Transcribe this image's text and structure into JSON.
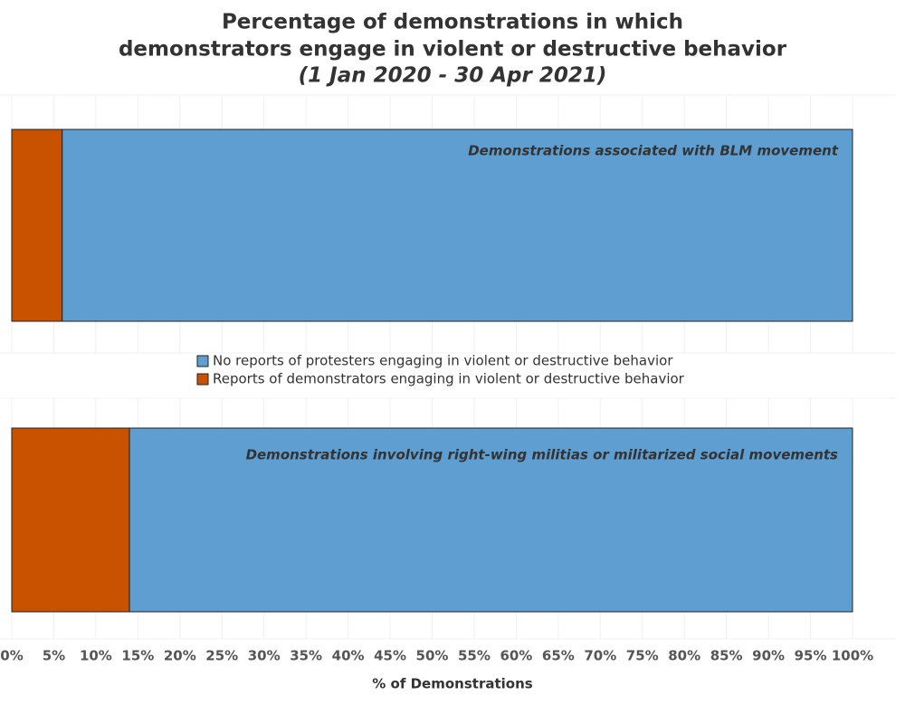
{
  "chart_data": {
    "type": "bar",
    "orientation": "horizontal",
    "stacked": true,
    "title": [
      "Percentage of demonstrations in which",
      "demonstrators engage in violent or destructive behavior"
    ],
    "subtitle": "(1 Jan 2020 - 30 Apr 2021)",
    "x_label": "% of Demonstrations",
    "categories": [
      "Demonstrations associated with BLM movement",
      "Demonstrations involving right-wing militias or militarized social movements"
    ],
    "series": [
      {
        "name": "No reports of protesters engaging in violent or destructive behavior",
        "color": "#5f9ed1",
        "values": [
          94,
          86
        ]
      },
      {
        "name": "Reports of demonstrators engaging in violent or destructive behavior",
        "color": "#c85200",
        "values": [
          6,
          14
        ]
      }
    ],
    "xlim": [
      0,
      100
    ],
    "xticks": [
      {
        "value": 0,
        "label": "0%"
      },
      {
        "value": 5,
        "label": "5%"
      },
      {
        "value": 10,
        "label": "10%"
      },
      {
        "value": 15,
        "label": "15%"
      },
      {
        "value": 20,
        "label": "20%"
      },
      {
        "value": 25,
        "label": "25%"
      },
      {
        "value": 30,
        "label": "30%"
      },
      {
        "value": 35,
        "label": "35%"
      },
      {
        "value": 40,
        "label": "40%"
      },
      {
        "value": 45,
        "label": "45%"
      },
      {
        "value": 50,
        "label": "50%"
      },
      {
        "value": 55,
        "label": "55%"
      },
      {
        "value": 60,
        "label": "60%"
      },
      {
        "value": 65,
        "label": "65%"
      },
      {
        "value": 70,
        "label": "70%"
      },
      {
        "value": 75,
        "label": "75%"
      },
      {
        "value": 80,
        "label": "80%"
      },
      {
        "value": 85,
        "label": "85%"
      },
      {
        "value": 90,
        "label": "90%"
      },
      {
        "value": 95,
        "label": "95%"
      },
      {
        "value": 100,
        "label": "100%"
      }
    ],
    "grid": true
  }
}
